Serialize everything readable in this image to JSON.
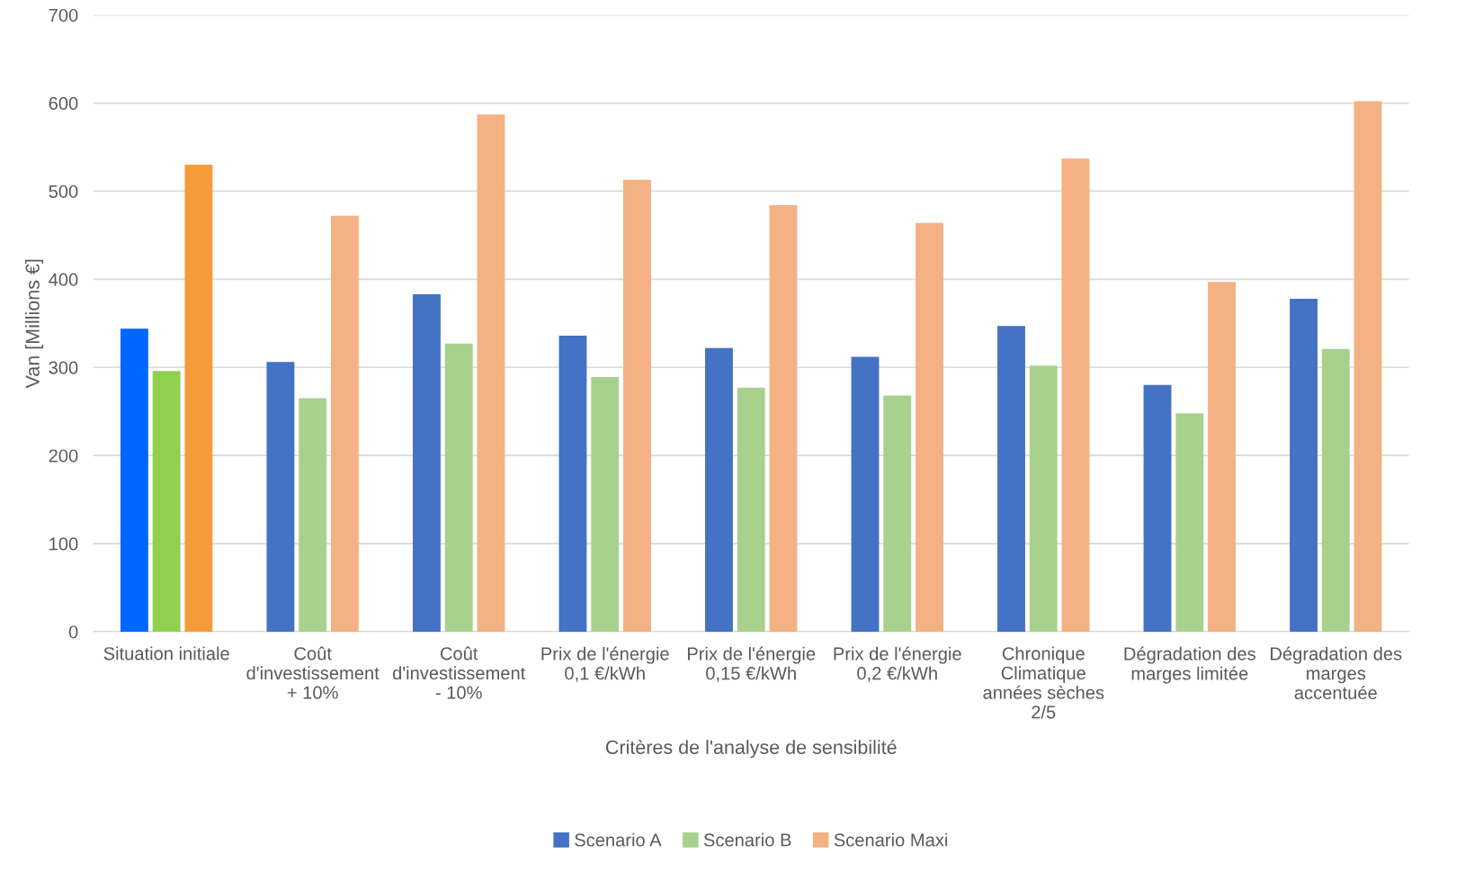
{
  "chart_data": {
    "type": "bar",
    "xlabel": "Critères de l'analyse de sensibilité",
    "ylabel": "Van [Millions €]",
    "categories": [
      "Situation initiale",
      "Coût\nd'investissement\n+ 10%",
      "Coût\nd'investissement\n- 10%",
      "Prix de l'énergie\n0,1 €/kWh",
      "Prix de l'énergie\n0,15 €/kWh",
      "Prix de l'énergie\n0,2 €/kWh",
      "Chronique\nClimatique\nannées sèches\n2/5",
      "Dégradation des\nmarges limitée",
      "Dégradation des\nmarges\naccentuée"
    ],
    "series": [
      {
        "name": "Scenario A",
        "color": "#4472c4",
        "colors": [
          "#0066ff",
          "#4472c4",
          "#4472c4",
          "#4472c4",
          "#4472c4",
          "#4472c4",
          "#4472c4",
          "#4472c4",
          "#4472c4"
        ],
        "values": [
          344,
          306,
          383,
          336,
          322,
          312,
          347,
          280,
          378
        ]
      },
      {
        "name": "Scenario B",
        "color": "#a9d18e",
        "colors": [
          "#92d050",
          "#a9d18e",
          "#a9d18e",
          "#a9d18e",
          "#a9d18e",
          "#a9d18e",
          "#a9d18e",
          "#a9d18e",
          "#a9d18e"
        ],
        "values": [
          296,
          265,
          327,
          289,
          277,
          268,
          302,
          248,
          321
        ]
      },
      {
        "name": "Scenario Maxi",
        "color": "#f4b183",
        "colors": [
          "#f79c3a",
          "#f4b183",
          "#f4b183",
          "#f4b183",
          "#f4b183",
          "#f4b183",
          "#f4b183",
          "#f4b183",
          "#f4b183"
        ],
        "values": [
          530,
          472,
          587,
          513,
          484,
          464,
          537,
          397,
          602
        ]
      }
    ],
    "ylim": [
      0,
      700
    ],
    "yticks": [
      0,
      100,
      200,
      300,
      400,
      500,
      600,
      700
    ],
    "grid": "y",
    "legend": "bottom"
  }
}
